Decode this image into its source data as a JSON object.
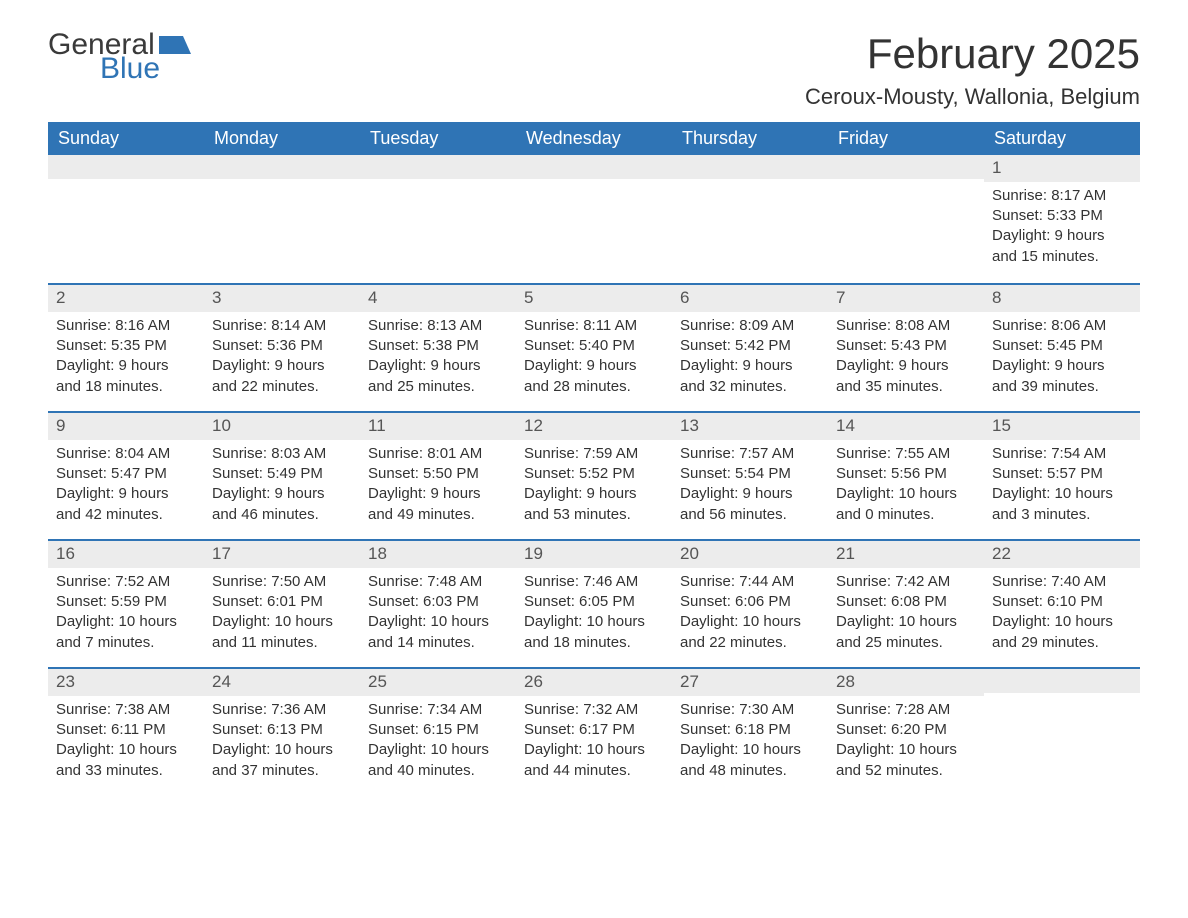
{
  "brand": {
    "word1": "General",
    "word2": "Blue",
    "word1_color": "#3a3a3a",
    "word2_color": "#2f74b5",
    "shape_color": "#2f74b5"
  },
  "title": "February 2025",
  "location": "Ceroux-Mousty, Wallonia, Belgium",
  "colors": {
    "header_bg": "#2f74b5",
    "header_text": "#ffffff",
    "strip_bg": "#ececec",
    "week_divider": "#2f74b5",
    "body_text": "#333333",
    "background": "#ffffff"
  },
  "fonts": {
    "title_size_pt": 32,
    "location_size_pt": 17,
    "dow_size_pt": 14,
    "body_size_pt": 11
  },
  "days_of_week": [
    "Sunday",
    "Monday",
    "Tuesday",
    "Wednesday",
    "Thursday",
    "Friday",
    "Saturday"
  ],
  "weeks": [
    [
      {
        "day": "",
        "sunrise": "",
        "sunset": "",
        "daylight1": "",
        "daylight2": ""
      },
      {
        "day": "",
        "sunrise": "",
        "sunset": "",
        "daylight1": "",
        "daylight2": ""
      },
      {
        "day": "",
        "sunrise": "",
        "sunset": "",
        "daylight1": "",
        "daylight2": ""
      },
      {
        "day": "",
        "sunrise": "",
        "sunset": "",
        "daylight1": "",
        "daylight2": ""
      },
      {
        "day": "",
        "sunrise": "",
        "sunset": "",
        "daylight1": "",
        "daylight2": ""
      },
      {
        "day": "",
        "sunrise": "",
        "sunset": "",
        "daylight1": "",
        "daylight2": ""
      },
      {
        "day": "1",
        "sunrise": "Sunrise: 8:17 AM",
        "sunset": "Sunset: 5:33 PM",
        "daylight1": "Daylight: 9 hours",
        "daylight2": "and 15 minutes."
      }
    ],
    [
      {
        "day": "2",
        "sunrise": "Sunrise: 8:16 AM",
        "sunset": "Sunset: 5:35 PM",
        "daylight1": "Daylight: 9 hours",
        "daylight2": "and 18 minutes."
      },
      {
        "day": "3",
        "sunrise": "Sunrise: 8:14 AM",
        "sunset": "Sunset: 5:36 PM",
        "daylight1": "Daylight: 9 hours",
        "daylight2": "and 22 minutes."
      },
      {
        "day": "4",
        "sunrise": "Sunrise: 8:13 AM",
        "sunset": "Sunset: 5:38 PM",
        "daylight1": "Daylight: 9 hours",
        "daylight2": "and 25 minutes."
      },
      {
        "day": "5",
        "sunrise": "Sunrise: 8:11 AM",
        "sunset": "Sunset: 5:40 PM",
        "daylight1": "Daylight: 9 hours",
        "daylight2": "and 28 minutes."
      },
      {
        "day": "6",
        "sunrise": "Sunrise: 8:09 AM",
        "sunset": "Sunset: 5:42 PM",
        "daylight1": "Daylight: 9 hours",
        "daylight2": "and 32 minutes."
      },
      {
        "day": "7",
        "sunrise": "Sunrise: 8:08 AM",
        "sunset": "Sunset: 5:43 PM",
        "daylight1": "Daylight: 9 hours",
        "daylight2": "and 35 minutes."
      },
      {
        "day": "8",
        "sunrise": "Sunrise: 8:06 AM",
        "sunset": "Sunset: 5:45 PM",
        "daylight1": "Daylight: 9 hours",
        "daylight2": "and 39 minutes."
      }
    ],
    [
      {
        "day": "9",
        "sunrise": "Sunrise: 8:04 AM",
        "sunset": "Sunset: 5:47 PM",
        "daylight1": "Daylight: 9 hours",
        "daylight2": "and 42 minutes."
      },
      {
        "day": "10",
        "sunrise": "Sunrise: 8:03 AM",
        "sunset": "Sunset: 5:49 PM",
        "daylight1": "Daylight: 9 hours",
        "daylight2": "and 46 minutes."
      },
      {
        "day": "11",
        "sunrise": "Sunrise: 8:01 AM",
        "sunset": "Sunset: 5:50 PM",
        "daylight1": "Daylight: 9 hours",
        "daylight2": "and 49 minutes."
      },
      {
        "day": "12",
        "sunrise": "Sunrise: 7:59 AM",
        "sunset": "Sunset: 5:52 PM",
        "daylight1": "Daylight: 9 hours",
        "daylight2": "and 53 minutes."
      },
      {
        "day": "13",
        "sunrise": "Sunrise: 7:57 AM",
        "sunset": "Sunset: 5:54 PM",
        "daylight1": "Daylight: 9 hours",
        "daylight2": "and 56 minutes."
      },
      {
        "day": "14",
        "sunrise": "Sunrise: 7:55 AM",
        "sunset": "Sunset: 5:56 PM",
        "daylight1": "Daylight: 10 hours",
        "daylight2": "and 0 minutes."
      },
      {
        "day": "15",
        "sunrise": "Sunrise: 7:54 AM",
        "sunset": "Sunset: 5:57 PM",
        "daylight1": "Daylight: 10 hours",
        "daylight2": "and 3 minutes."
      }
    ],
    [
      {
        "day": "16",
        "sunrise": "Sunrise: 7:52 AM",
        "sunset": "Sunset: 5:59 PM",
        "daylight1": "Daylight: 10 hours",
        "daylight2": "and 7 minutes."
      },
      {
        "day": "17",
        "sunrise": "Sunrise: 7:50 AM",
        "sunset": "Sunset: 6:01 PM",
        "daylight1": "Daylight: 10 hours",
        "daylight2": "and 11 minutes."
      },
      {
        "day": "18",
        "sunrise": "Sunrise: 7:48 AM",
        "sunset": "Sunset: 6:03 PM",
        "daylight1": "Daylight: 10 hours",
        "daylight2": "and 14 minutes."
      },
      {
        "day": "19",
        "sunrise": "Sunrise: 7:46 AM",
        "sunset": "Sunset: 6:05 PM",
        "daylight1": "Daylight: 10 hours",
        "daylight2": "and 18 minutes."
      },
      {
        "day": "20",
        "sunrise": "Sunrise: 7:44 AM",
        "sunset": "Sunset: 6:06 PM",
        "daylight1": "Daylight: 10 hours",
        "daylight2": "and 22 minutes."
      },
      {
        "day": "21",
        "sunrise": "Sunrise: 7:42 AM",
        "sunset": "Sunset: 6:08 PM",
        "daylight1": "Daylight: 10 hours",
        "daylight2": "and 25 minutes."
      },
      {
        "day": "22",
        "sunrise": "Sunrise: 7:40 AM",
        "sunset": "Sunset: 6:10 PM",
        "daylight1": "Daylight: 10 hours",
        "daylight2": "and 29 minutes."
      }
    ],
    [
      {
        "day": "23",
        "sunrise": "Sunrise: 7:38 AM",
        "sunset": "Sunset: 6:11 PM",
        "daylight1": "Daylight: 10 hours",
        "daylight2": "and 33 minutes."
      },
      {
        "day": "24",
        "sunrise": "Sunrise: 7:36 AM",
        "sunset": "Sunset: 6:13 PM",
        "daylight1": "Daylight: 10 hours",
        "daylight2": "and 37 minutes."
      },
      {
        "day": "25",
        "sunrise": "Sunrise: 7:34 AM",
        "sunset": "Sunset: 6:15 PM",
        "daylight1": "Daylight: 10 hours",
        "daylight2": "and 40 minutes."
      },
      {
        "day": "26",
        "sunrise": "Sunrise: 7:32 AM",
        "sunset": "Sunset: 6:17 PM",
        "daylight1": "Daylight: 10 hours",
        "daylight2": "and 44 minutes."
      },
      {
        "day": "27",
        "sunrise": "Sunrise: 7:30 AM",
        "sunset": "Sunset: 6:18 PM",
        "daylight1": "Daylight: 10 hours",
        "daylight2": "and 48 minutes."
      },
      {
        "day": "28",
        "sunrise": "Sunrise: 7:28 AM",
        "sunset": "Sunset: 6:20 PM",
        "daylight1": "Daylight: 10 hours",
        "daylight2": "and 52 minutes."
      },
      {
        "day": "",
        "sunrise": "",
        "sunset": "",
        "daylight1": "",
        "daylight2": ""
      }
    ]
  ]
}
